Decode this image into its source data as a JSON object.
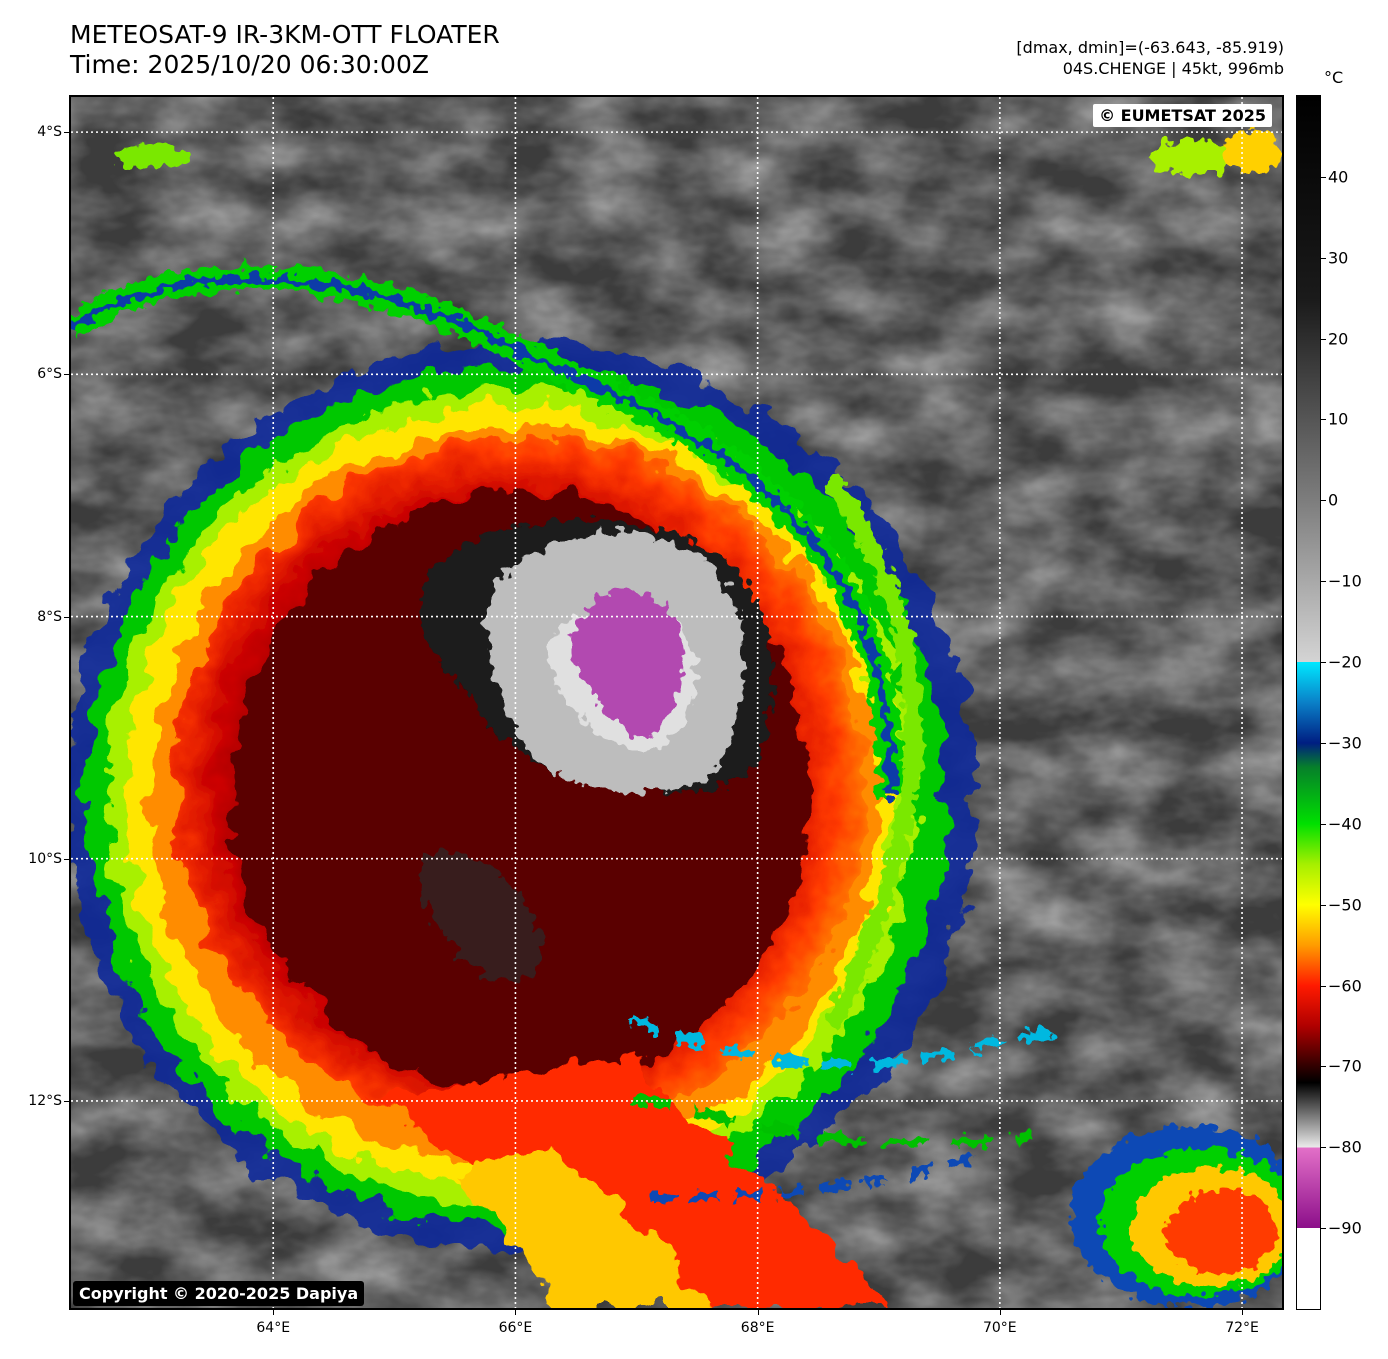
{
  "header": {
    "title_line1": "METEOSAT-9 IR-3KM-OTT FLOATER",
    "title_line2": "Time: 2025/10/20 06:30:00Z",
    "stats_line1": "[dmax, dmin]=(-63.643, -85.919)",
    "stats_line2": "04S.CHENGE | 45kt, 996mb"
  },
  "badges": {
    "top_right": "© EUMETSAT 2025",
    "bottom_left": "Copyright © 2020-2025 Dapiya"
  },
  "map": {
    "lon_range": [
      62.33,
      72.33
    ],
    "lat_range": [
      -3.71,
      -13.71
    ],
    "lat_labels": [
      "4°S",
      "6°S",
      "8°S",
      "10°S",
      "12°S"
    ],
    "lat_values": [
      -4,
      -6,
      -8,
      -10,
      -12
    ],
    "lon_labels": [
      "64°E",
      "66°E",
      "68°E",
      "70°E",
      "72°E"
    ],
    "lon_values": [
      64,
      66,
      68,
      70,
      72
    ],
    "grid": "dotted-white"
  },
  "colorbar": {
    "unit": "°C",
    "range": [
      -100,
      50
    ],
    "ticks": [
      "40",
      "30",
      "20",
      "10",
      "0",
      "−10",
      "−20",
      "−30",
      "−40",
      "−50",
      "−60",
      "−70",
      "−80",
      "−90"
    ],
    "tick_values": [
      40,
      30,
      20,
      10,
      0,
      -10,
      -20,
      -30,
      -40,
      -50,
      -60,
      -70,
      -80,
      -90
    ],
    "stops": [
      {
        "t": 50,
        "color": "#000000"
      },
      {
        "t": 25,
        "color": "#1a1a1a"
      },
      {
        "t": 0,
        "color": "#7d7d7d"
      },
      {
        "t": -20,
        "color": "#d4d4d4"
      },
      {
        "t": -20.01,
        "color": "#00e8ff"
      },
      {
        "t": -25,
        "color": "#0a80c8"
      },
      {
        "t": -30,
        "color": "#001e82"
      },
      {
        "t": -33,
        "color": "#06802a"
      },
      {
        "t": -40,
        "color": "#00e000"
      },
      {
        "t": -45,
        "color": "#a6ef00"
      },
      {
        "t": -50,
        "color": "#ffff00"
      },
      {
        "t": -55,
        "color": "#ff9c00"
      },
      {
        "t": -60,
        "color": "#ff1a00"
      },
      {
        "t": -65,
        "color": "#b00000"
      },
      {
        "t": -70,
        "color": "#300000"
      },
      {
        "t": -72,
        "color": "#000000"
      },
      {
        "t": -80,
        "color": "#ebebeb"
      },
      {
        "t": -80.01,
        "color": "#e370c8"
      },
      {
        "t": -90,
        "color": "#8c0f8a"
      },
      {
        "t": -90.01,
        "color": "#ffffff"
      },
      {
        "t": -100,
        "color": "#ffffff"
      }
    ]
  }
}
